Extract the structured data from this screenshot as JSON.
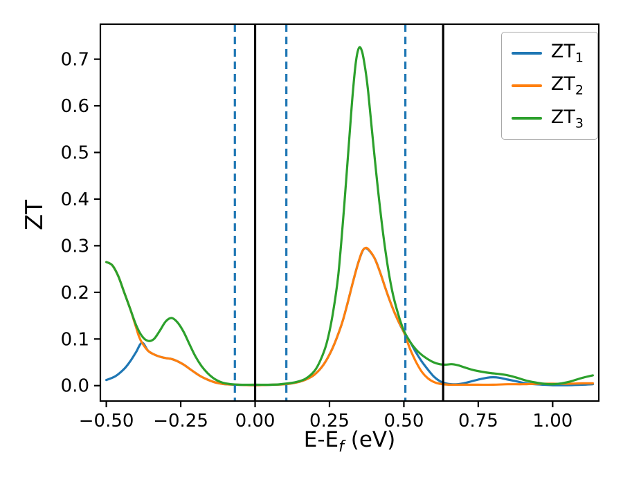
{
  "figure": {
    "background": "#ffffff"
  },
  "chart_data": {
    "type": "line",
    "title": "",
    "xlabel_main": "E-E",
    "xlabel_sub": "f",
    "xlabel_unit": " (eV)",
    "ylabel": "ZT",
    "xlim": [
      -0.52,
      1.155
    ],
    "ylim": [
      -0.033,
      0.775
    ],
    "grid": false,
    "x_ticks": [
      {
        "v": -0.5,
        "label": "−0.50"
      },
      {
        "v": -0.25,
        "label": "−0.25"
      },
      {
        "v": 0.0,
        "label": "0.00"
      },
      {
        "v": 0.25,
        "label": "0.25"
      },
      {
        "v": 0.5,
        "label": "0.50"
      },
      {
        "v": 0.75,
        "label": "0.75"
      },
      {
        "v": 1.0,
        "label": "1.00"
      }
    ],
    "y_ticks": [
      {
        "v": 0.0,
        "label": "0.0"
      },
      {
        "v": 0.1,
        "label": "0.1"
      },
      {
        "v": 0.2,
        "label": "0.2"
      },
      {
        "v": 0.3,
        "label": "0.3"
      },
      {
        "v": 0.4,
        "label": "0.4"
      },
      {
        "v": 0.5,
        "label": "0.5"
      },
      {
        "v": 0.6,
        "label": "0.6"
      },
      {
        "v": 0.7,
        "label": "0.7"
      }
    ],
    "legend": {
      "position": "upper right",
      "items": [
        {
          "base": "ZT",
          "sub": "1"
        },
        {
          "base": "ZT",
          "sub": "2"
        },
        {
          "base": "ZT",
          "sub": "3"
        }
      ]
    },
    "vlines": [
      {
        "x": 0.0,
        "color": "#000000",
        "dash": null,
        "width": 3.2
      },
      {
        "x": 0.632,
        "color": "#000000",
        "dash": null,
        "width": 3.2
      },
      {
        "x": -0.068,
        "color": "#1f77b4",
        "dash": "11 7",
        "width": 3.2
      },
      {
        "x": 0.105,
        "color": "#1f77b4",
        "dash": "11 7",
        "width": 3.2
      },
      {
        "x": 0.505,
        "color": "#1f77b4",
        "dash": "11 7",
        "width": 3.2
      }
    ],
    "series": [
      {
        "name": "ZT1",
        "color": "#1f77b4",
        "points": [
          [
            -0.5,
            0.012
          ],
          [
            -0.47,
            0.02
          ],
          [
            -0.44,
            0.036
          ],
          [
            -0.42,
            0.052
          ],
          [
            -0.4,
            0.072
          ],
          [
            -0.38,
            0.092
          ],
          [
            -0.36,
            0.075
          ],
          [
            -0.34,
            0.067
          ],
          [
            -0.32,
            0.062
          ],
          [
            -0.3,
            0.059
          ],
          [
            -0.28,
            0.057
          ],
          [
            -0.26,
            0.052
          ],
          [
            -0.24,
            0.045
          ],
          [
            -0.22,
            0.036
          ],
          [
            -0.2,
            0.027
          ],
          [
            -0.18,
            0.019
          ],
          [
            -0.16,
            0.013
          ],
          [
            -0.14,
            0.008
          ],
          [
            -0.12,
            0.005
          ],
          [
            -0.1,
            0.003
          ],
          [
            -0.06,
            0.002
          ],
          [
            0.0,
            0.001
          ],
          [
            0.06,
            0.002
          ],
          [
            0.1,
            0.003
          ],
          [
            0.14,
            0.007
          ],
          [
            0.17,
            0.013
          ],
          [
            0.2,
            0.024
          ],
          [
            0.23,
            0.045
          ],
          [
            0.26,
            0.08
          ],
          [
            0.29,
            0.13
          ],
          [
            0.31,
            0.175
          ],
          [
            0.33,
            0.225
          ],
          [
            0.35,
            0.27
          ],
          [
            0.37,
            0.295
          ],
          [
            0.4,
            0.275
          ],
          [
            0.42,
            0.243
          ],
          [
            0.44,
            0.205
          ],
          [
            0.46,
            0.17
          ],
          [
            0.48,
            0.14
          ],
          [
            0.5,
            0.115
          ],
          [
            0.52,
            0.095
          ],
          [
            0.54,
            0.072
          ],
          [
            0.56,
            0.052
          ],
          [
            0.58,
            0.035
          ],
          [
            0.6,
            0.02
          ],
          [
            0.62,
            0.01
          ],
          [
            0.64,
            0.005
          ],
          [
            0.66,
            0.003
          ],
          [
            0.68,
            0.003
          ],
          [
            0.7,
            0.005
          ],
          [
            0.72,
            0.008
          ],
          [
            0.75,
            0.013
          ],
          [
            0.78,
            0.017
          ],
          [
            0.8,
            0.018
          ],
          [
            0.82,
            0.017
          ],
          [
            0.85,
            0.013
          ],
          [
            0.88,
            0.009
          ],
          [
            0.91,
            0.005
          ],
          [
            0.94,
            0.003
          ],
          [
            0.97,
            0.002
          ],
          [
            1.0,
            0.001
          ],
          [
            1.05,
            0.001
          ],
          [
            1.1,
            0.002
          ],
          [
            1.135,
            0.003
          ]
        ]
      },
      {
        "name": "ZT2",
        "color": "#ff7f0e",
        "points": [
          [
            -0.5,
            0.265
          ],
          [
            -0.48,
            0.258
          ],
          [
            -0.46,
            0.235
          ],
          [
            -0.44,
            0.2
          ],
          [
            -0.42,
            0.165
          ],
          [
            -0.4,
            0.125
          ],
          [
            -0.39,
            0.105
          ],
          [
            -0.38,
            0.092
          ],
          [
            -0.36,
            0.075
          ],
          [
            -0.34,
            0.067
          ],
          [
            -0.32,
            0.062
          ],
          [
            -0.3,
            0.059
          ],
          [
            -0.28,
            0.057
          ],
          [
            -0.26,
            0.052
          ],
          [
            -0.24,
            0.045
          ],
          [
            -0.22,
            0.036
          ],
          [
            -0.2,
            0.027
          ],
          [
            -0.18,
            0.019
          ],
          [
            -0.16,
            0.013
          ],
          [
            -0.14,
            0.008
          ],
          [
            -0.12,
            0.005
          ],
          [
            -0.1,
            0.003
          ],
          [
            -0.06,
            0.002
          ],
          [
            0.0,
            0.001
          ],
          [
            0.06,
            0.002
          ],
          [
            0.1,
            0.003
          ],
          [
            0.14,
            0.007
          ],
          [
            0.17,
            0.013
          ],
          [
            0.2,
            0.024
          ],
          [
            0.23,
            0.045
          ],
          [
            0.26,
            0.08
          ],
          [
            0.29,
            0.13
          ],
          [
            0.31,
            0.175
          ],
          [
            0.33,
            0.225
          ],
          [
            0.35,
            0.27
          ],
          [
            0.36,
            0.288
          ],
          [
            0.37,
            0.295
          ],
          [
            0.38,
            0.293
          ],
          [
            0.4,
            0.275
          ],
          [
            0.42,
            0.243
          ],
          [
            0.44,
            0.205
          ],
          [
            0.46,
            0.17
          ],
          [
            0.48,
            0.14
          ],
          [
            0.5,
            0.115
          ],
          [
            0.52,
            0.08
          ],
          [
            0.54,
            0.052
          ],
          [
            0.56,
            0.03
          ],
          [
            0.58,
            0.016
          ],
          [
            0.6,
            0.008
          ],
          [
            0.62,
            0.004
          ],
          [
            0.65,
            0.002
          ],
          [
            0.7,
            0.002
          ],
          [
            0.75,
            0.002
          ],
          [
            0.8,
            0.002
          ],
          [
            0.85,
            0.003
          ],
          [
            0.9,
            0.003
          ],
          [
            0.95,
            0.004
          ],
          [
            1.0,
            0.004
          ],
          [
            1.05,
            0.004
          ],
          [
            1.1,
            0.005
          ],
          [
            1.135,
            0.005
          ]
        ]
      },
      {
        "name": "ZT3",
        "color": "#2ca02c",
        "points": [
          [
            -0.5,
            0.265
          ],
          [
            -0.48,
            0.258
          ],
          [
            -0.46,
            0.235
          ],
          [
            -0.44,
            0.2
          ],
          [
            -0.42,
            0.165
          ],
          [
            -0.4,
            0.13
          ],
          [
            -0.38,
            0.106
          ],
          [
            -0.36,
            0.096
          ],
          [
            -0.34,
            0.1
          ],
          [
            -0.32,
            0.118
          ],
          [
            -0.3,
            0.138
          ],
          [
            -0.28,
            0.145
          ],
          [
            -0.26,
            0.135
          ],
          [
            -0.24,
            0.115
          ],
          [
            -0.22,
            0.088
          ],
          [
            -0.2,
            0.062
          ],
          [
            -0.18,
            0.042
          ],
          [
            -0.16,
            0.027
          ],
          [
            -0.14,
            0.016
          ],
          [
            -0.12,
            0.009
          ],
          [
            -0.1,
            0.005
          ],
          [
            -0.06,
            0.002
          ],
          [
            0.0,
            0.002
          ],
          [
            0.06,
            0.002
          ],
          [
            0.1,
            0.004
          ],
          [
            0.14,
            0.008
          ],
          [
            0.17,
            0.015
          ],
          [
            0.2,
            0.032
          ],
          [
            0.22,
            0.055
          ],
          [
            0.24,
            0.09
          ],
          [
            0.26,
            0.15
          ],
          [
            0.28,
            0.24
          ],
          [
            0.3,
            0.39
          ],
          [
            0.32,
            0.56
          ],
          [
            0.33,
            0.64
          ],
          [
            0.34,
            0.7
          ],
          [
            0.35,
            0.725
          ],
          [
            0.36,
            0.715
          ],
          [
            0.37,
            0.68
          ],
          [
            0.38,
            0.63
          ],
          [
            0.4,
            0.5
          ],
          [
            0.42,
            0.38
          ],
          [
            0.44,
            0.28
          ],
          [
            0.46,
            0.205
          ],
          [
            0.48,
            0.155
          ],
          [
            0.5,
            0.118
          ],
          [
            0.52,
            0.095
          ],
          [
            0.54,
            0.078
          ],
          [
            0.56,
            0.066
          ],
          [
            0.58,
            0.057
          ],
          [
            0.6,
            0.05
          ],
          [
            0.62,
            0.046
          ],
          [
            0.64,
            0.045
          ],
          [
            0.66,
            0.046
          ],
          [
            0.68,
            0.044
          ],
          [
            0.7,
            0.04
          ],
          [
            0.73,
            0.034
          ],
          [
            0.76,
            0.03
          ],
          [
            0.79,
            0.027
          ],
          [
            0.82,
            0.025
          ],
          [
            0.85,
            0.022
          ],
          [
            0.88,
            0.017
          ],
          [
            0.91,
            0.011
          ],
          [
            0.94,
            0.007
          ],
          [
            0.97,
            0.004
          ],
          [
            1.0,
            0.003
          ],
          [
            1.03,
            0.005
          ],
          [
            1.06,
            0.009
          ],
          [
            1.09,
            0.015
          ],
          [
            1.12,
            0.02
          ],
          [
            1.135,
            0.022
          ]
        ]
      }
    ]
  }
}
